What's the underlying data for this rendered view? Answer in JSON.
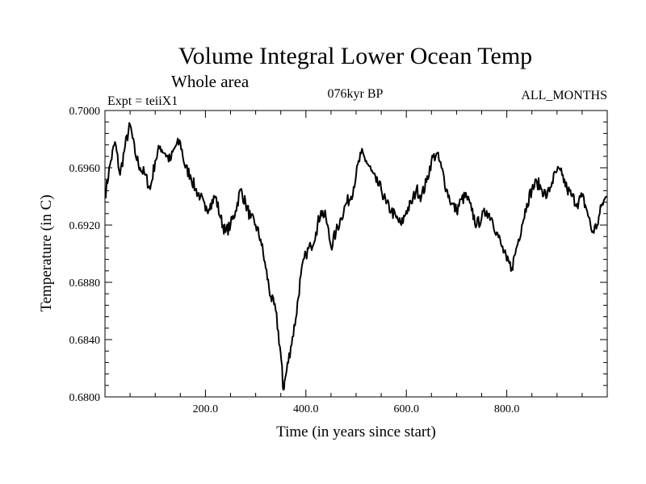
{
  "chart_data": {
    "type": "line",
    "title": "Volume Integral Lower Ocean Temp",
    "subtitle": "Whole area",
    "experiment": "Expt = teiiX1",
    "period": "076kyr BP",
    "months": "ALL_MONTHS",
    "xlabel": "Time (in years since start)",
    "ylabel": "Temperature (in C)",
    "xlim": [
      0,
      1000
    ],
    "ylim": [
      0.68,
      0.7
    ],
    "xticks": [
      200,
      400,
      600,
      800
    ],
    "xtick_labels": [
      "200.0",
      "400.0",
      "600.0",
      "800.0"
    ],
    "yticks": [
      0.68,
      0.684,
      0.688,
      0.692,
      0.696,
      0.7
    ],
    "ytick_labels": [
      "0.6800",
      "0.6840",
      "0.6880",
      "0.6920",
      "0.6960",
      "0.7000"
    ],
    "grid": false,
    "legend": "none",
    "series": [
      {
        "x": [
          0,
          10,
          20,
          30,
          40,
          50,
          60,
          70,
          80,
          90,
          100,
          110,
          120,
          130,
          140,
          150,
          160,
          170,
          180,
          190,
          200,
          210,
          220,
          230,
          240,
          250,
          260,
          270,
          280,
          290,
          300,
          310,
          320,
          330,
          340,
          350,
          355,
          360,
          370,
          380,
          390,
          400,
          410,
          420,
          430,
          440,
          450,
          460,
          470,
          480,
          490,
          500,
          510,
          520,
          530,
          540,
          550,
          560,
          570,
          580,
          590,
          600,
          610,
          620,
          630,
          640,
          650,
          660,
          670,
          680,
          690,
          700,
          710,
          720,
          730,
          740,
          750,
          760,
          770,
          780,
          790,
          800,
          810,
          820,
          830,
          840,
          850,
          860,
          870,
          880,
          890,
          900,
          910,
          920,
          930,
          940,
          950,
          960,
          970,
          980,
          990,
          1000
        ],
        "y": [
          0.694,
          0.6962,
          0.6978,
          0.6955,
          0.6975,
          0.699,
          0.697,
          0.696,
          0.6955,
          0.6945,
          0.6965,
          0.6975,
          0.697,
          0.6965,
          0.6975,
          0.6978,
          0.696,
          0.6955,
          0.6945,
          0.694,
          0.693,
          0.6935,
          0.694,
          0.6925,
          0.6915,
          0.692,
          0.693,
          0.6945,
          0.6935,
          0.6925,
          0.692,
          0.691,
          0.689,
          0.687,
          0.686,
          0.683,
          0.6805,
          0.6815,
          0.6835,
          0.6855,
          0.6885,
          0.69,
          0.6905,
          0.6915,
          0.693,
          0.6925,
          0.6905,
          0.6915,
          0.6925,
          0.6935,
          0.694,
          0.6955,
          0.697,
          0.6965,
          0.6958,
          0.695,
          0.6945,
          0.6935,
          0.693,
          0.6925,
          0.692,
          0.693,
          0.6935,
          0.6945,
          0.694,
          0.695,
          0.6965,
          0.697,
          0.696,
          0.6945,
          0.6935,
          0.693,
          0.6938,
          0.694,
          0.693,
          0.692,
          0.6925,
          0.693,
          0.6925,
          0.6915,
          0.6905,
          0.6895,
          0.689,
          0.6905,
          0.692,
          0.6935,
          0.6945,
          0.695,
          0.6945,
          0.694,
          0.695,
          0.6958,
          0.6955,
          0.6945,
          0.694,
          0.6935,
          0.694,
          0.693,
          0.6915,
          0.692,
          0.6935,
          0.694
        ]
      }
    ]
  }
}
